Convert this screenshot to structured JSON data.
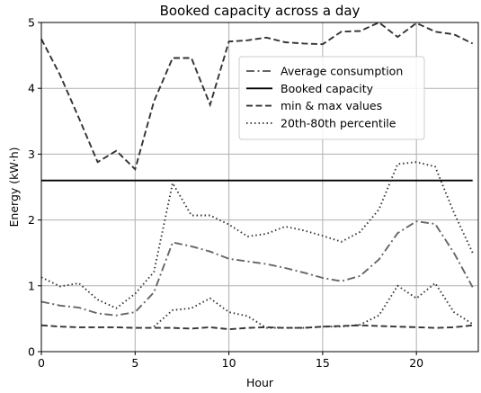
{
  "chart_data": {
    "type": "line",
    "title": "Booked capacity across a day",
    "xlabel": "Hour",
    "ylabel": "Energy (kW·h)",
    "xlim": [
      0,
      23.3
    ],
    "ylim": [
      0,
      5
    ],
    "x_ticks": [
      0,
      5,
      10,
      15,
      20
    ],
    "y_ticks": [
      0,
      1,
      2,
      3,
      4,
      5
    ],
    "grid": true,
    "legend_position": "upper right",
    "x": [
      0,
      1,
      2,
      3,
      4,
      5,
      6,
      7,
      8,
      9,
      10,
      11,
      12,
      13,
      14,
      15,
      16,
      17,
      18,
      19,
      20,
      21,
      22,
      23
    ],
    "series": [
      {
        "name": "Average consumption",
        "style": "dashdot",
        "color": "#666666",
        "values": [
          0.76,
          0.7,
          0.67,
          0.58,
          0.55,
          0.6,
          0.9,
          1.66,
          1.6,
          1.52,
          1.41,
          1.37,
          1.33,
          1.27,
          1.2,
          1.12,
          1.07,
          1.15,
          1.4,
          1.8,
          1.98,
          1.94,
          1.5,
          0.98
        ]
      },
      {
        "name": "Booked capacity",
        "style": "solid",
        "color": "#000000",
        "values": [
          2.6,
          2.6,
          2.6,
          2.6,
          2.6,
          2.6,
          2.6,
          2.6,
          2.6,
          2.6,
          2.6,
          2.6,
          2.6,
          2.6,
          2.6,
          2.6,
          2.6,
          2.6,
          2.6,
          2.6,
          2.6,
          2.6,
          2.6,
          2.6
        ]
      },
      {
        "name": "min & max values",
        "style": "dashed",
        "color": "#333333",
        "values": [
          4.75,
          4.2,
          3.55,
          2.88,
          3.05,
          2.77,
          3.8,
          4.46,
          4.46,
          3.75,
          4.71,
          4.73,
          4.77,
          4.7,
          4.68,
          4.67,
          4.86,
          4.87,
          5.0,
          4.78,
          4.99,
          4.86,
          4.82,
          4.68
        ]
      },
      {
        "name": "min values",
        "legend": false,
        "style": "dashed",
        "color": "#333333",
        "values": [
          0.4,
          0.38,
          0.37,
          0.37,
          0.37,
          0.36,
          0.36,
          0.36,
          0.35,
          0.37,
          0.34,
          0.36,
          0.37,
          0.36,
          0.36,
          0.38,
          0.39,
          0.4,
          0.39,
          0.38,
          0.37,
          0.36,
          0.37,
          0.4
        ]
      },
      {
        "name": "20th-80th percentile",
        "style": "dotted",
        "color": "#333333",
        "values": [
          1.13,
          0.99,
          1.04,
          0.79,
          0.66,
          0.88,
          1.21,
          2.56,
          2.07,
          2.07,
          1.93,
          1.75,
          1.79,
          1.9,
          1.84,
          1.76,
          1.67,
          1.82,
          2.16,
          2.85,
          2.88,
          2.81,
          2.11,
          1.5
        ]
      },
      {
        "name": "20th percentile",
        "legend": false,
        "style": "dotted",
        "color": "#333333",
        "values": [
          null,
          null,
          null,
          null,
          null,
          null,
          0.38,
          0.63,
          0.66,
          0.81,
          0.6,
          0.54,
          0.36,
          0.36,
          0.36,
          0.38,
          0.38,
          0.41,
          0.55,
          1.0,
          0.81,
          1.04,
          0.6,
          0.42
        ]
      }
    ]
  }
}
